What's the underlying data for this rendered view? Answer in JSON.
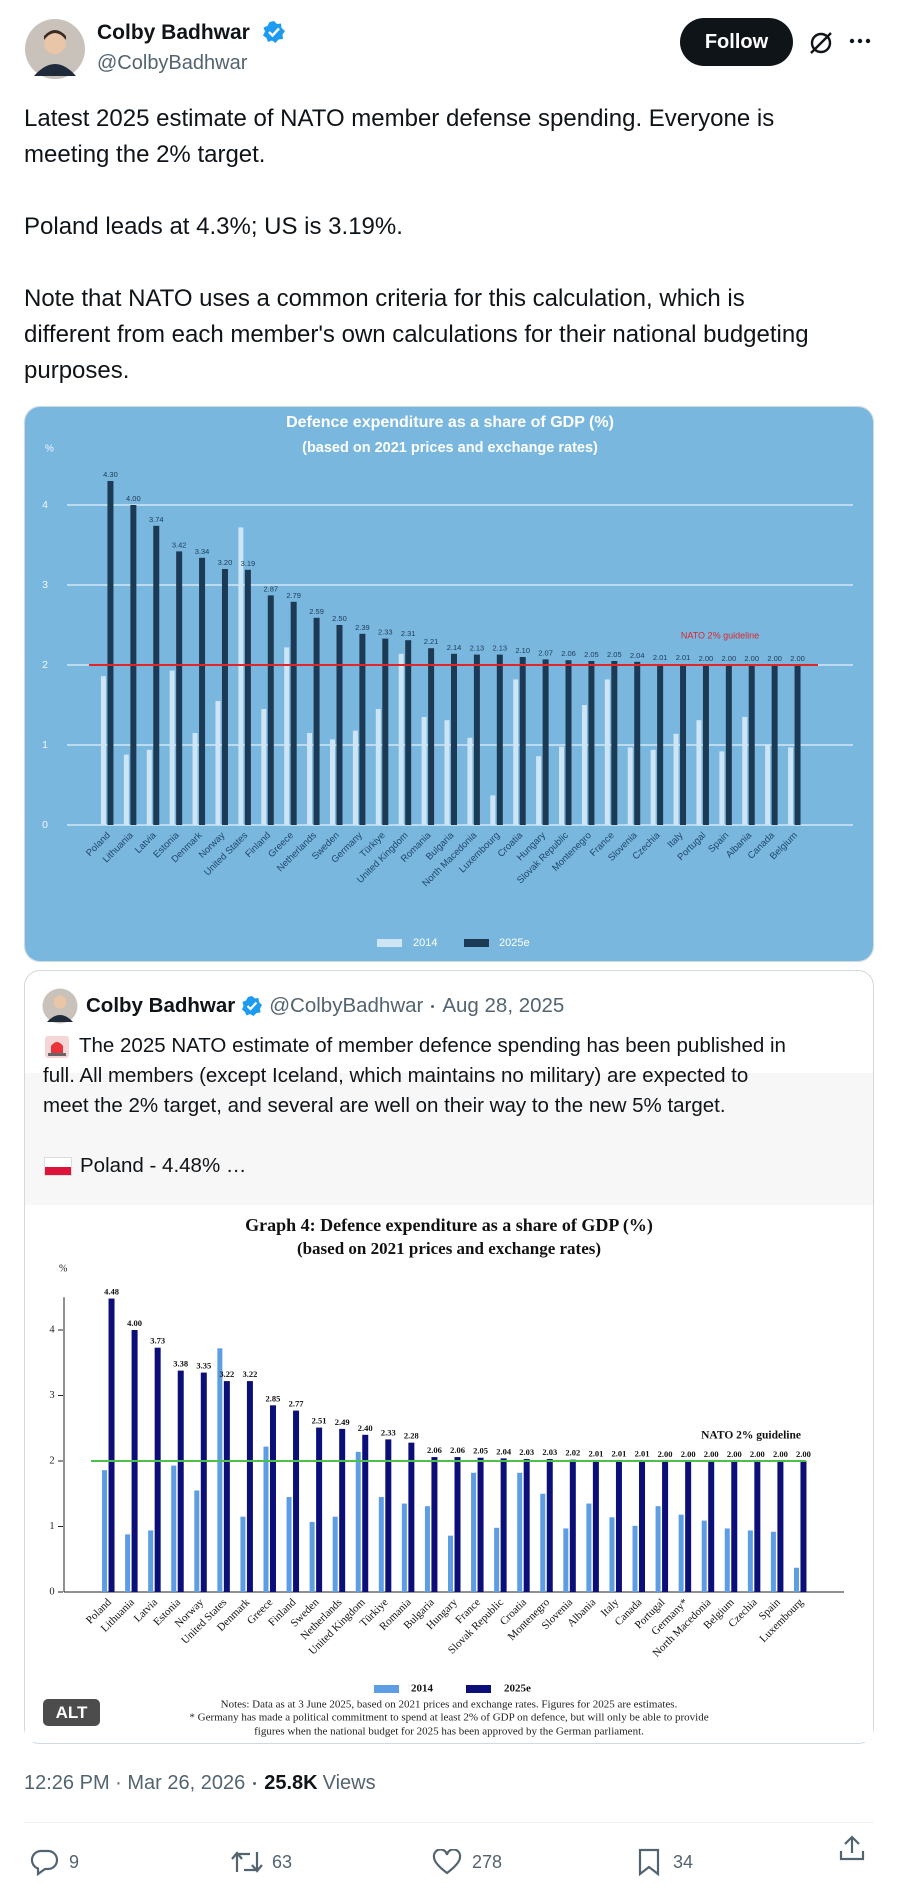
{
  "header": {
    "name": "Colby Badhwar",
    "handle": "@ColbyBadhwar",
    "follow": "Follow"
  },
  "tweet": {
    "paragraphs": [
      [
        "Latest 2025 estimate of NATO member defense spending. Everyone is",
        "meeting the 2% target."
      ],
      [
        "Poland leads at 4.3%; US is 3.19%."
      ],
      [
        "Note that NATO uses a common criteria for this calculation, which is",
        "different from each member's own calculations for their national budgeting",
        "purposes."
      ]
    ]
  },
  "chart_data": [
    {
      "type": "bar",
      "title": "Defence expenditure as a share of GDP (%)",
      "subtitle": "(based on 2021 prices and exchange rates)",
      "y_label": "%",
      "categories": [
        "Poland",
        "Lithuania",
        "Latvia",
        "Estonia",
        "Denmark",
        "Norway",
        "United States",
        "Finland",
        "Greece",
        "Netherlands",
        "Sweden",
        "Germany",
        "Türkiye",
        "United Kingdom",
        "Romania",
        "Bulgaria",
        "North Macedonia",
        "Luxembourg",
        "Croatia",
        "Hungary",
        "Slovak Republic",
        "Montenegro",
        "France",
        "Slovenia",
        "Czechia",
        "Italy",
        "Portugal",
        "Spain",
        "Albania",
        "Canada",
        "Belgium"
      ],
      "series": [
        {
          "name": "2014",
          "color": "#cde5f5",
          "values": [
            1.86,
            0.88,
            0.94,
            1.93,
            1.15,
            1.55,
            3.72,
            1.45,
            2.22,
            1.15,
            1.07,
            1.18,
            1.45,
            2.14,
            1.35,
            1.31,
            1.09,
            0.37,
            1.82,
            0.86,
            0.98,
            1.5,
            1.82,
            0.97,
            0.94,
            1.14,
            1.31,
            0.92,
            1.35,
            1.01,
            0.97
          ]
        },
        {
          "name": "2025e",
          "color": "#1d3a55",
          "values": [
            4.3,
            4.0,
            3.74,
            3.42,
            3.34,
            3.2,
            3.19,
            2.87,
            2.79,
            2.59,
            2.5,
            2.39,
            2.33,
            2.31,
            2.21,
            2.14,
            2.13,
            2.13,
            2.1,
            2.07,
            2.06,
            2.05,
            2.05,
            2.04,
            2.01,
            2.01,
            2.0,
            2.0,
            2.0,
            2.0,
            2.0
          ],
          "value_labels": [
            "4.30",
            "4.00",
            "3.74",
            "3.42",
            "3.34",
            "3.20",
            "3.19",
            "2.87",
            "2.79",
            "2.59",
            "2.50",
            "2.39",
            "2.33",
            "2.31",
            "2.21",
            "2.14",
            "2.13",
            "2.13",
            "2.10",
            "2.07",
            "2.06",
            "2.05",
            "2.05",
            "2.04",
            "2.01",
            "2.01",
            "2.00",
            "2.00",
            "2.00",
            "2.00",
            "2.00"
          ]
        }
      ],
      "ylim": [
        0,
        4.5
      ],
      "yticks": [
        0,
        1,
        2,
        3,
        4
      ],
      "grid": true,
      "guideline": {
        "value": 2,
        "label": "NATO 2% guideline",
        "color": "#e0252b"
      },
      "background": "#79b7df"
    },
    {
      "type": "bar",
      "title": "Graph 4: Defence expenditure as a share of GDP (%)",
      "subtitle": "(based on 2021 prices and exchange rates)",
      "y_label": "%",
      "categories": [
        "Poland",
        "Lithuania",
        "Latvia",
        "Estonia",
        "Norway",
        "United States",
        "Denmark",
        "Greece",
        "Finland",
        "Sweden",
        "Netherlands",
        "United Kingdom",
        "Türkiye",
        "Romania",
        "Bulgaria",
        "Hungary",
        "France",
        "Slovak Republic",
        "Croatia",
        "Montenegro",
        "Slovenia",
        "Albania",
        "Italy",
        "Canada",
        "Portugal",
        "Germany*",
        "North Macedonia",
        "Belgium",
        "Czechia",
        "Spain",
        "Luxembourg"
      ],
      "series": [
        {
          "name": "2014",
          "color": "#5d9de4",
          "values": [
            1.86,
            0.88,
            0.94,
            1.93,
            1.55,
            3.72,
            1.15,
            2.22,
            1.45,
            1.07,
            1.15,
            2.14,
            1.45,
            1.35,
            1.31,
            0.86,
            1.82,
            0.98,
            1.82,
            1.5,
            0.97,
            1.35,
            1.14,
            1.01,
            1.31,
            1.18,
            1.09,
            0.97,
            0.94,
            0.92,
            0.37
          ]
        },
        {
          "name": "2025e",
          "color": "#0d0f78",
          "values": [
            4.48,
            4.0,
            3.73,
            3.38,
            3.35,
            3.22,
            3.22,
            2.85,
            2.77,
            2.51,
            2.49,
            2.4,
            2.33,
            2.28,
            2.06,
            2.06,
            2.05,
            2.04,
            2.03,
            2.03,
            2.02,
            2.01,
            2.01,
            2.01,
            2.0,
            2.0,
            2.0,
            2.0,
            2.0,
            2.0,
            2.0
          ],
          "value_labels": [
            "4.48",
            "4.00",
            "3.73",
            "3.38",
            "3.35",
            "3.22",
            "3.22",
            "2.85",
            "2.77",
            "2.51",
            "2.49",
            "2.40",
            "2.33",
            "2.28",
            "2.06",
            "2.06",
            "2.05",
            "2.04",
            "2.03",
            "2.03",
            "2.02",
            "2.01",
            "2.01",
            "2.01",
            "2.00",
            "2.00",
            "2.00",
            "2.00",
            "2.00",
            "2.00",
            "2.00"
          ]
        }
      ],
      "ylim": [
        0,
        4.5
      ],
      "yticks": [
        0,
        1,
        2,
        3,
        4
      ],
      "grid": false,
      "guideline": {
        "value": 2,
        "label": "NATO 2% guideline",
        "color": "#4cc04c"
      },
      "notes": [
        "Notes: Data as at 3 June 2025, based on 2021 prices and exchange rates. Figures for 2025 are estimates.",
        "* Germany has made a political commitment to spend at least 2% of GDP on defence, but will only be able to provide",
        "figures when the national budget for 2025 has been approved by the German parliament."
      ],
      "background": "#ffffff"
    }
  ],
  "quote": {
    "name": "Colby Badhwar",
    "handle": "@ColbyBadhwar",
    "date": "Aug 28, 2025",
    "lines": [
      "The 2025 NATO estimate of member defence spending has been published in",
      "full. All members (except Iceland, which maintains no military) are expected to",
      "meet the 2% target, and several are well on their way to the new 5% target."
    ],
    "flag_line": "Poland - 4.48% …",
    "alt": "ALT"
  },
  "footer": {
    "time": "12:26 PM · Mar 26, 2026",
    "views": "25.8K",
    "views_label": "Views"
  },
  "actions": {
    "replies": 9,
    "reposts": 63,
    "likes": 278,
    "bookmarks": 34
  }
}
